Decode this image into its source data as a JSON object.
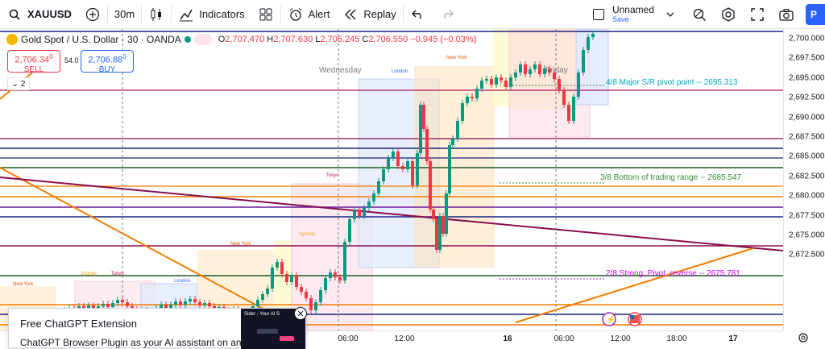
{
  "toolbar": {
    "symbol": "XAUUSD",
    "interval": "30m",
    "indicators": "Indicators",
    "alert": "Alert",
    "replay": "Replay",
    "layout_name": "Unnamed",
    "layout_status": "Save",
    "publish_label": "P"
  },
  "legend": {
    "title": "Gold Spot / U.S. Dollar · 30 · OANDA",
    "open_label": "O",
    "open": "2,707.470",
    "high_label": "H",
    "high": "2,707.630",
    "low_label": "L",
    "low": "2,705.245",
    "close_label": "C",
    "close": "2,706.550",
    "change": "−0.945 (−0.03%)"
  },
  "trade": {
    "sell_price": "2,706.34",
    "sell_price_sup": "0",
    "sell_label": "SELL",
    "spread": "54.0",
    "buy_price": "2,706.88",
    "buy_price_sup": "0",
    "buy_label": "BUY",
    "collapse_count": "2"
  },
  "annotations": {
    "pivot": "4/8 Major S/R pivot point --  2695.313",
    "bottom_range": "3/8 Bottom of trading range --  2685.547",
    "strong_pivot": "2/8 Strong, Pivot, reverse --  2675.781",
    "day_label_1": "Wednesday",
    "day_label_2": "Friday",
    "session_london": "London",
    "session_newyork": "New York",
    "session_tokyo": "Tokyo",
    "session_sydney": "Sydney"
  },
  "price_axis": [
    "2,700.000",
    "2,697.500",
    "2,695.000",
    "2,692.500",
    "2,690.000",
    "2,687.500",
    "2,685.000",
    "2,682.500",
    "2,680.000",
    "2,677.500",
    "2,675.000",
    "2,672.500"
  ],
  "time_axis": [
    "06:00",
    "12:00",
    "16",
    "06:00",
    "12:00",
    "18:00",
    "17"
  ],
  "popup": {
    "title": "Free ChatGPT Extension",
    "description": "ChatGPT Browser Plugin as your AI assistant on any",
    "image_caption": "Sider - Your AI S"
  },
  "colors": {
    "up": "#089981",
    "down": "#f23645",
    "accent": "#2962ff",
    "pivot_line": "#9c27b0",
    "orange_line": "#f57c00",
    "navy_line": "#1a237e",
    "green_line": "#1b5e20"
  }
}
